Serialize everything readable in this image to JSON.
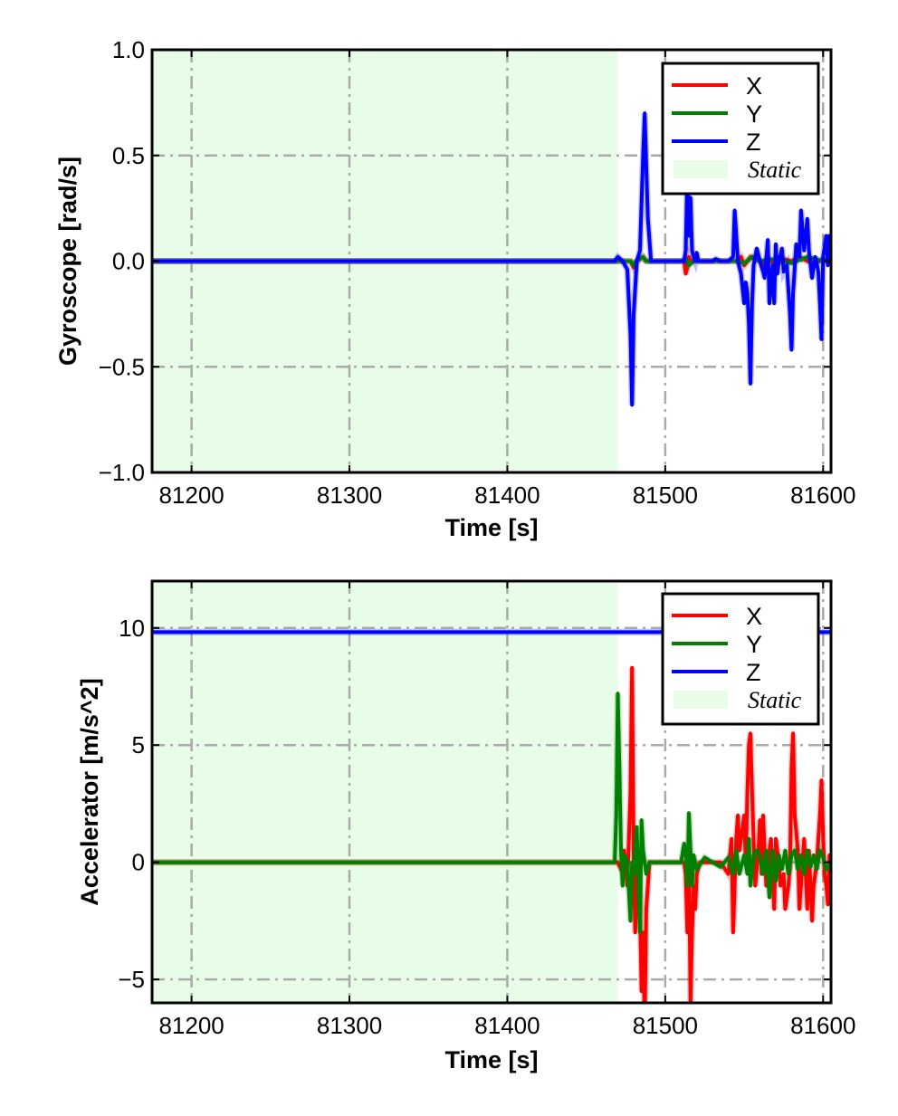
{
  "chart_data": [
    {
      "type": "line",
      "xlabel": "Time [s]",
      "ylabel": "Gyroscope [rad/s]",
      "xlim": [
        81175,
        81605
      ],
      "ylim": [
        -1.0,
        1.0
      ],
      "xticks": [
        81200,
        81300,
        81400,
        81500,
        81600
      ],
      "xtick_labels": [
        "81200",
        "81300",
        "81400",
        "81500",
        "81600"
      ],
      "yticks": [
        -1.0,
        -0.5,
        0.0,
        0.5,
        1.0
      ],
      "ytick_labels": [
        "−1.0",
        "−0.5",
        "0.0",
        "0.5",
        "1.0"
      ],
      "grid": true,
      "legend_position": "top-right",
      "static_region": {
        "x": [
          81175,
          81470
        ],
        "label": "Static",
        "color": "#e8fde8"
      },
      "series": [
        {
          "name": "X",
          "color": "#ff0000",
          "x": [
            81175,
            81470,
            81478,
            81480,
            81482,
            81486,
            81488,
            81490,
            81512,
            81513,
            81514,
            81515,
            81516,
            81545,
            81548,
            81550,
            81552,
            81554,
            81560,
            81562,
            81565,
            81567,
            81570,
            81575,
            81580,
            81585,
            81590,
            81595,
            81600,
            81605
          ],
          "y": [
            0,
            0,
            0,
            -0.03,
            0,
            0.02,
            0,
            0,
            0,
            -0.06,
            -0.03,
            0.02,
            0,
            0,
            0.02,
            -0.02,
            0,
            0.02,
            0,
            -0.02,
            0.02,
            0,
            -0.02,
            0.01,
            0,
            0.02,
            0,
            -0.01,
            0.01,
            0
          ]
        },
        {
          "name": "Y",
          "color": "#008000",
          "x": [
            81175,
            81470,
            81478,
            81480,
            81482,
            81486,
            81488,
            81490,
            81510,
            81513,
            81515,
            81518,
            81545,
            81550,
            81555,
            81560,
            81570,
            81580,
            81590,
            81600,
            81605
          ],
          "y": [
            0,
            0,
            0,
            -0.02,
            0,
            0.02,
            0,
            0,
            0,
            0.01,
            -0.02,
            0,
            0,
            -0.01,
            0.02,
            0,
            0.01,
            -0.01,
            0.02,
            0,
            0
          ]
        },
        {
          "name": "Z",
          "color": "#0000ff",
          "x": [
            81175,
            81468,
            81470,
            81473,
            81476,
            81478,
            81479,
            81480,
            81482,
            81484,
            81486,
            81487,
            81489,
            81491,
            81512,
            81513,
            81514,
            81515,
            81516,
            81517,
            81518,
            81519,
            81520,
            81521,
            81523,
            81530,
            81532,
            81535,
            81540,
            81543,
            81544,
            81546,
            81548,
            81550,
            81551,
            81552,
            81553,
            81554,
            81555,
            81556,
            81558,
            81560,
            81562,
            81563,
            81565,
            81566,
            81568,
            81569,
            81570,
            81571,
            81572,
            81574,
            81575,
            81577,
            81579,
            81580,
            81581,
            81583,
            81585,
            81586,
            81588,
            81590,
            81591,
            81593,
            81595,
            81597,
            81598,
            81599,
            81600,
            81602,
            81603,
            81604,
            81605
          ],
          "y": [
            0,
            0,
            0.02,
            0,
            -0.04,
            -0.35,
            -0.68,
            -0.25,
            0,
            0.05,
            0.5,
            0.7,
            0.2,
            0,
            0,
            0.05,
            0.42,
            0.12,
            0.3,
            0.05,
            0.02,
            0,
            0.04,
            0,
            0,
            0,
            0.01,
            0,
            0,
            0.02,
            0.24,
            0,
            -0.06,
            -0.2,
            -0.1,
            -0.15,
            -0.3,
            -0.58,
            -0.2,
            -0.02,
            0.06,
            0,
            -0.05,
            -0.08,
            0.1,
            -0.2,
            -0.02,
            -0.2,
            0.08,
            -0.06,
            0,
            0.06,
            -0.05,
            -0.02,
            -0.25,
            -0.42,
            -0.15,
            0.08,
            0.02,
            0.24,
            0.05,
            0.2,
            0.05,
            -0.08,
            0.02,
            -0.05,
            -0.2,
            -0.37,
            0.02,
            0.12,
            -0.02,
            0.12,
            0
          ]
        }
      ],
      "legend": [
        {
          "label": "X",
          "kind": "line",
          "color": "#ff0000"
        },
        {
          "label": "Y",
          "kind": "line",
          "color": "#008000"
        },
        {
          "label": "Z",
          "kind": "line",
          "color": "#0000ff"
        },
        {
          "label": "Static",
          "kind": "patch",
          "color": "#e8fde8"
        }
      ]
    },
    {
      "type": "line",
      "xlabel": "Time [s]",
      "ylabel": "Accelerator [m/s^2]",
      "xlim": [
        81175,
        81605
      ],
      "ylim": [
        -6,
        12
      ],
      "xticks": [
        81200,
        81300,
        81400,
        81500,
        81600
      ],
      "xtick_labels": [
        "81200",
        "81300",
        "81400",
        "81500",
        "81600"
      ],
      "yticks": [
        -5,
        0,
        5,
        10
      ],
      "ytick_labels": [
        "−5",
        "0",
        "5",
        "10"
      ],
      "grid": true,
      "legend_position": "top-right",
      "static_region": {
        "x": [
          81175,
          81470
        ],
        "label": "Static",
        "color": "#e8fde8"
      },
      "series": [
        {
          "name": "X",
          "color": "#ff0000",
          "x": [
            81175,
            81470,
            81472,
            81474,
            81476,
            81478,
            81479,
            81480,
            81481,
            81483,
            81484,
            81485,
            81486,
            81487,
            81488,
            81490,
            81512,
            81513,
            81514,
            81515,
            81516,
            81517,
            81518,
            81519,
            81520,
            81522,
            81525,
            81535,
            81540,
            81542,
            81543,
            81545,
            81546,
            81547,
            81548,
            81550,
            81551,
            81552,
            81553,
            81554,
            81555,
            81556,
            81557,
            81559,
            81560,
            81561,
            81562,
            81563,
            81564,
            81566,
            81567,
            81569,
            81570,
            81572,
            81573,
            81575,
            81576,
            81578,
            81579,
            81580,
            81581,
            81582,
            81584,
            81585,
            81587,
            81588,
            81590,
            81591,
            81593,
            81594,
            81596,
            81597,
            81598,
            81599,
            81600,
            81601,
            81602,
            81603,
            81604,
            81605
          ],
          "y": [
            0,
            0,
            -0.3,
            0.5,
            -1,
            3,
            8.3,
            0,
            -3,
            0.5,
            -2,
            -5.5,
            -3,
            -7,
            -2,
            0,
            0,
            -0.5,
            -3,
            0.5,
            -6,
            -3,
            -1,
            -2,
            -0.5,
            0,
            0,
            0,
            -0.5,
            1,
            -3,
            1,
            2,
            0.5,
            1,
            2,
            0,
            3,
            5,
            5.5,
            3,
            1,
            -1,
            0.5,
            1.8,
            -0.5,
            2,
            0.5,
            -1,
            0.5,
            1,
            -2,
            1,
            0,
            -1,
            -0.5,
            -2,
            -1,
            -0.2,
            4,
            5.5,
            2,
            0.5,
            -2,
            0,
            1,
            -2,
            0.5,
            -2.5,
            -1,
            0,
            1,
            2,
            3.5,
            1,
            -0.5,
            -1,
            -1.8,
            0.3,
            0
          ]
        },
        {
          "name": "Y",
          "color": "#008000",
          "x": [
            81175,
            81468,
            81469,
            81470,
            81471,
            81472,
            81473,
            81474,
            81476,
            81478,
            81479,
            81480,
            81482,
            81483,
            81484,
            81485,
            81486,
            81488,
            81490,
            81510,
            81512,
            81513,
            81514,
            81515,
            81516,
            81517,
            81518,
            81520,
            81525,
            81530,
            81535,
            81540,
            81543,
            81545,
            81547,
            81550,
            81552,
            81553,
            81554,
            81556,
            81558,
            81560,
            81562,
            81564,
            81566,
            81568,
            81570,
            81572,
            81574,
            81576,
            81578,
            81580,
            81582,
            81584,
            81586,
            81588,
            81590,
            81592,
            81594,
            81596,
            81598,
            81600,
            81602,
            81605
          ],
          "y": [
            0,
            0,
            2,
            7.2,
            4,
            0.5,
            -1,
            0.3,
            0,
            -2.5,
            0,
            -0.5,
            1.5,
            -1,
            -3,
            1.8,
            0.5,
            -0.5,
            0,
            0,
            0.8,
            0.3,
            -1,
            2.1,
            0.5,
            -1,
            0.3,
            -0.3,
            0.2,
            0,
            -0.2,
            0.2,
            -0.5,
            0.5,
            -0.5,
            0.3,
            -0.5,
            1,
            -1,
            0.3,
            0.5,
            0.2,
            -0.5,
            0.5,
            -1.5,
            0.5,
            -0.8,
            0.3,
            -0.3,
            0.5,
            -0.5,
            0.3,
            0.5,
            -0.3,
            0.3,
            -0.5,
            0.5,
            -0.2,
            0.3,
            -0.3,
            0.5,
            0.2,
            -0.3,
            0
          ]
        },
        {
          "name": "Z",
          "color": "#0000ff",
          "x": [
            81175,
            81605
          ],
          "y": [
            9.82,
            9.82
          ]
        }
      ],
      "legend": [
        {
          "label": "X",
          "kind": "line",
          "color": "#ff0000"
        },
        {
          "label": "Y",
          "kind": "line",
          "color": "#008000"
        },
        {
          "label": "Z",
          "kind": "line",
          "color": "#0000ff"
        },
        {
          "label": "Static",
          "kind": "patch",
          "color": "#e8fde8"
        }
      ]
    }
  ]
}
